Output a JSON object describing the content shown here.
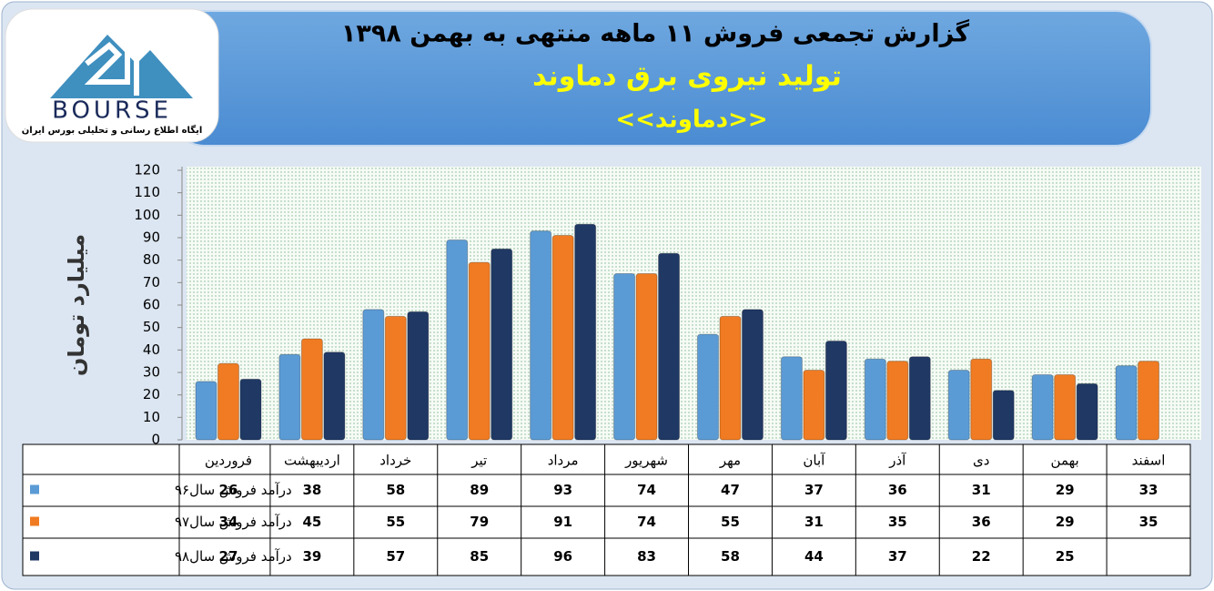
{
  "logo": {
    "name": "BOURSE",
    "caption": "ایگاه اطلاع رسانی و تحلیلی بورس ایران"
  },
  "chart_data": {
    "type": "bar",
    "title": "گزارش تجمعی فروش  ۱۱ ماهه منتهی به بهمن ۱۳۹۸",
    "subtitle": "تولید نیروی برق دماوند",
    "subtitle2": "<<دماوند>>",
    "y_label": "میلیارد تومان",
    "categories": [
      "فروردین",
      "اردیبهشت",
      "خرداد",
      "تیر",
      "مرداد",
      "شهریور",
      "مهر",
      "آبان",
      "آذر",
      "دی",
      "بهمن",
      "اسفند"
    ],
    "series": [
      {
        "name": "درآمد فروش سال۹۶",
        "color": "#5b9bd5",
        "values": [
          26,
          38,
          58,
          89,
          93,
          74,
          47,
          37,
          36,
          31,
          29,
          33
        ]
      },
      {
        "name": "درآمد فروش سال۹۷",
        "color": "#f07b22",
        "values": [
          34,
          45,
          55,
          79,
          91,
          74,
          55,
          31,
          35,
          36,
          29,
          35
        ]
      },
      {
        "name": "درآمد فروش سال۹۸",
        "color": "#1f3864",
        "values": [
          27,
          39,
          57,
          85,
          96,
          83,
          58,
          44,
          37,
          22,
          25,
          null
        ]
      }
    ],
    "ylim": [
      0,
      120
    ],
    "yticks": [
      0,
      10,
      20,
      30,
      40,
      50,
      60,
      70,
      80,
      90,
      100,
      110,
      120
    ]
  }
}
